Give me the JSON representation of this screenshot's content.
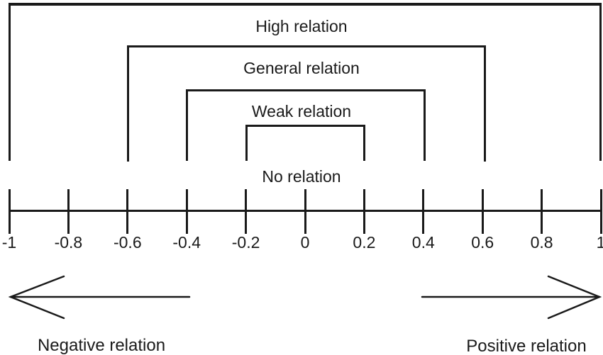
{
  "figure": {
    "background": "#ffffff",
    "line_color": "#1a1a1a",
    "brackets": [
      {
        "label": "High relation",
        "from": -1,
        "to": 1
      },
      {
        "label": "General relation",
        "from": -0.6,
        "to": 0.6
      },
      {
        "label": "Weak relation",
        "from": -0.4,
        "to": 0.4
      },
      {
        "label": "No relation",
        "from": -0.2,
        "to": 0.2
      }
    ],
    "axis": {
      "min": -1,
      "max": 1,
      "ticks": [
        {
          "value": -1,
          "label": "-1"
        },
        {
          "value": -0.8,
          "label": "-0.8"
        },
        {
          "value": -0.6,
          "label": "-0.6"
        },
        {
          "value": -0.4,
          "label": "-0.4"
        },
        {
          "value": -0.2,
          "label": "-0.2"
        },
        {
          "value": 0,
          "label": "0"
        },
        {
          "value": 0.2,
          "label": "0.2"
        },
        {
          "value": 0.4,
          "label": "0.4"
        },
        {
          "value": 0.6,
          "label": "0.6"
        },
        {
          "value": 0.8,
          "label": "0.8"
        },
        {
          "value": 1,
          "label": "1"
        }
      ]
    },
    "arrows": {
      "left": {
        "direction": "left",
        "label": "Negative relation"
      },
      "right": {
        "direction": "right",
        "label": "Positive relation"
      }
    }
  }
}
